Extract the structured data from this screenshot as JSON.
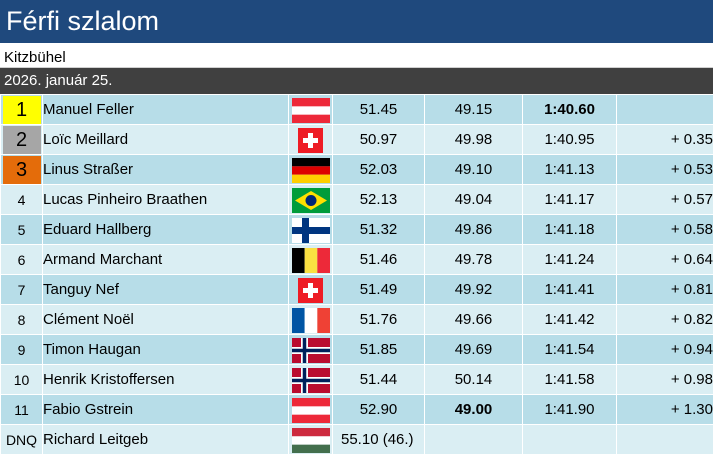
{
  "title": "Férfi szlalom",
  "venue": "Kitzbühel",
  "date": "2026. január 25.",
  "rows": [
    {
      "rank": "1",
      "name": "Manuel Feller",
      "flag": "austria-flag",
      "run1": "51.45",
      "run2": "49.15",
      "total": "1:40.60",
      "diff": ""
    },
    {
      "rank": "2",
      "name": "Loïc Meillard",
      "flag": "switzerland-flag",
      "run1": "50.97",
      "run2": "49.98",
      "total": "1:40.95",
      "diff": "+ 0.35"
    },
    {
      "rank": "3",
      "name": "Linus Straßer",
      "flag": "germany-flag",
      "run1": "52.03",
      "run2": "49.10",
      "total": "1:41.13",
      "diff": "+ 0.53"
    },
    {
      "rank": "4",
      "name": "Lucas Pinheiro Braathen",
      "flag": "brazil-flag",
      "run1": "52.13",
      "run2": "49.04",
      "total": "1:41.17",
      "diff": "+ 0.57"
    },
    {
      "rank": "5",
      "name": "Eduard Hallberg",
      "flag": "finland-flag",
      "run1": "51.32",
      "run2": "49.86",
      "total": "1:41.18",
      "diff": "+ 0.58"
    },
    {
      "rank": "6",
      "name": "Armand Marchant",
      "flag": "belgium-flag",
      "run1": "51.46",
      "run2": "49.78",
      "total": "1:41.24",
      "diff": "+ 0.64"
    },
    {
      "rank": "7",
      "name": "Tanguy Nef",
      "flag": "switzerland-flag",
      "run1": "51.49",
      "run2": "49.92",
      "total": "1:41.41",
      "diff": "+ 0.81"
    },
    {
      "rank": "8",
      "name": "Clément Noël",
      "flag": "france-flag",
      "run1": "51.76",
      "run2": "49.66",
      "total": "1:41.42",
      "diff": "+ 0.82"
    },
    {
      "rank": "9",
      "name": "Timon Haugan",
      "flag": "norway-flag",
      "run1": "51.85",
      "run2": "49.69",
      "total": "1:41.54",
      "diff": "+ 0.94"
    },
    {
      "rank": "10",
      "name": "Henrik Kristoffersen",
      "flag": "norway-flag",
      "run1": "51.44",
      "run2": "50.14",
      "total": "1:41.58",
      "diff": "+ 0.98"
    },
    {
      "rank": "11",
      "name": "Fabio Gstrein",
      "flag": "austria-flag",
      "run1": "52.90",
      "run2": "49.00",
      "total": "1:41.90",
      "diff": "+ 1.30"
    },
    {
      "rank": "DNQ",
      "name": "Richard Leitgeb",
      "flag": "hungary-flag",
      "run1": "55.10 (46.)",
      "run2": "",
      "total": "",
      "diff": ""
    }
  ]
}
